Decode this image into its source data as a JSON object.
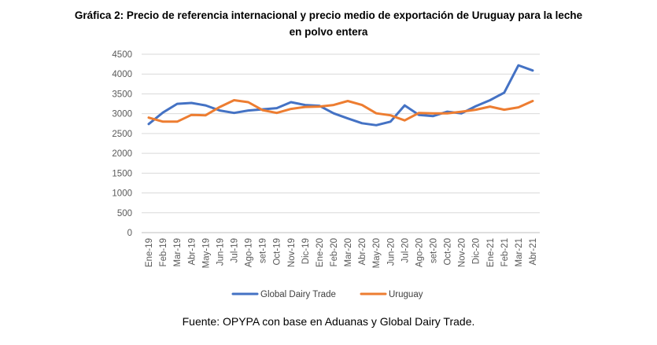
{
  "title_line1": "Gráfica 2: Precio de referencia internacional y precio medio de exportación de Uruguay para la leche",
  "title_line2": "en polvo entera",
  "source": "Fuente: OPYPA con base en Aduanas y Global Dairy Trade.",
  "chart_data": {
    "type": "line",
    "title": "",
    "xlabel": "",
    "ylabel": "",
    "ylim": [
      0,
      4500
    ],
    "yticks": [
      0,
      500,
      1000,
      1500,
      2000,
      2500,
      3000,
      3500,
      4000,
      4500
    ],
    "grid": "horizontal",
    "legend": "bottom",
    "categories": [
      "Ene-19",
      "Feb-19",
      "Mar-19",
      "Abr-19",
      "May-19",
      "Jun-19",
      "Jul-19",
      "Ago-19",
      "set-19",
      "Oct-19",
      "Nov-19",
      "Dic-19",
      "Ene-20",
      "Feb-20",
      "Mar-20",
      "Abr-20",
      "May-20",
      "Jun-20",
      "Jul-20",
      "Ago-20",
      "set-20",
      "Oct-20",
      "Nov-20",
      "Dic-20",
      "Ene-21",
      "Feb-21",
      "Mar-21",
      "Abr-21"
    ],
    "series": [
      {
        "name": "Global Dairy Trade",
        "color": "#4472C4",
        "values": [
          2740,
          3030,
          3250,
          3270,
          3210,
          3080,
          3020,
          3080,
          3110,
          3140,
          3290,
          3220,
          3200,
          3010,
          2880,
          2760,
          2710,
          2800,
          3210,
          2970,
          2940,
          3050,
          3010,
          3190,
          3340,
          3530,
          4220,
          4090
        ]
      },
      {
        "name": "Uruguay",
        "color": "#ED7D31",
        "values": [
          2900,
          2800,
          2800,
          2970,
          2960,
          3170,
          3340,
          3290,
          3090,
          3020,
          3120,
          3170,
          3180,
          3220,
          3320,
          3220,
          3010,
          2960,
          2830,
          3020,
          3010,
          3010,
          3050,
          3100,
          3180,
          3100,
          3160,
          3320
        ]
      }
    ]
  }
}
